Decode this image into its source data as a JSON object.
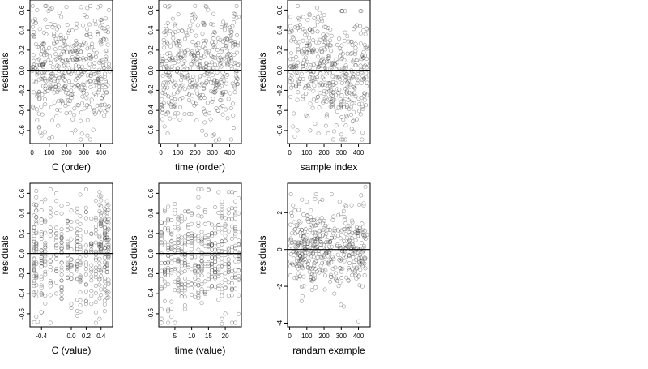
{
  "chart_data": [
    {
      "type": "scatter",
      "xlabel": "C (order)",
      "ylabel": "residuals",
      "xlim": [
        -12,
        468
      ],
      "ylim": [
        -0.73,
        0.7
      ],
      "xticks": [
        0,
        100,
        200,
        300,
        400
      ],
      "yticks": [
        -0.6,
        -0.4,
        -0.2,
        0.0,
        0.2,
        0.4,
        0.6
      ],
      "xtick_labels": [
        "0",
        "100",
        "200",
        "300",
        "400"
      ],
      "ytick_labels": [
        "-0.6",
        "-0.4",
        "-0.2",
        "0.0",
        "0.2",
        "0.4",
        "0.6"
      ],
      "reference_line_y": 0,
      "point_style": "open-circle",
      "point_color": "#444444",
      "n_points": 450,
      "generator": {
        "kind": "uniform",
        "ymin": -0.69,
        "ymax": 0.64,
        "seed": 11
      },
      "points": [
        [
          5,
          0.49
        ],
        [
          21,
          0.47
        ],
        [
          28,
          -0.39
        ],
        [
          48,
          -0.62
        ],
        [
          55,
          -0.65
        ],
        [
          60,
          -0.44
        ],
        [
          88,
          0.43
        ],
        [
          100,
          -0.68
        ],
        [
          120,
          0.43
        ],
        [
          142,
          -0.46
        ],
        [
          170,
          0.53
        ],
        [
          200,
          0.63
        ],
        [
          230,
          -0.63
        ],
        [
          252,
          -0.6
        ],
        [
          270,
          -0.35
        ],
        [
          305,
          0.55
        ],
        [
          318,
          0.53
        ],
        [
          322,
          -0.65
        ],
        [
          360,
          -0.41
        ],
        [
          398,
          0.5
        ],
        [
          405,
          -0.28
        ],
        [
          420,
          0.41
        ],
        [
          440,
          -0.37
        ],
        [
          447,
          0.6
        ]
      ]
    },
    {
      "type": "scatter",
      "xlabel": "time (order)",
      "ylabel": "residuals",
      "xlim": [
        -12,
        468
      ],
      "ylim": [
        -0.73,
        0.7
      ],
      "xticks": [
        0,
        100,
        200,
        300,
        400
      ],
      "yticks": [
        -0.6,
        -0.4,
        -0.2,
        0.0,
        0.2,
        0.4,
        0.6
      ],
      "xtick_labels": [
        "0",
        "100",
        "200",
        "300",
        "400"
      ],
      "ytick_labels": [
        "-0.6",
        "-0.4",
        "-0.2",
        "0.0",
        "0.2",
        "0.4",
        "0.6"
      ],
      "reference_line_y": 0,
      "point_style": "open-circle",
      "point_color": "#444444",
      "n_points": 450,
      "generator": {
        "kind": "uniform",
        "ymin": -0.69,
        "ymax": 0.64,
        "seed": 23
      },
      "points": [
        [
          22,
          -0.56
        ],
        [
          40,
          -0.63
        ],
        [
          60,
          -0.36
        ],
        [
          85,
          -0.43
        ],
        [
          100,
          -0.43
        ],
        [
          190,
          0.56
        ],
        [
          200,
          0.53
        ],
        [
          215,
          0.45
        ],
        [
          250,
          0.47
        ],
        [
          265,
          0.63
        ],
        [
          300,
          -0.65
        ],
        [
          310,
          -0.64
        ],
        [
          320,
          -0.7
        ],
        [
          345,
          0.3
        ],
        [
          360,
          -0.44
        ],
        [
          380,
          0.44
        ],
        [
          412,
          0.38
        ],
        [
          420,
          -0.45
        ],
        [
          440,
          0.52
        ],
        [
          452,
          0.53
        ]
      ]
    },
    {
      "type": "scatter",
      "xlabel": "sample index",
      "ylabel": "residuals",
      "xlim": [
        -12,
        468
      ],
      "ylim": [
        -0.73,
        0.7
      ],
      "xticks": [
        0,
        100,
        200,
        300,
        400
      ],
      "yticks": [
        -0.6,
        -0.4,
        -0.2,
        0.0,
        0.2,
        0.4,
        0.6
      ],
      "xtick_labels": [
        "0",
        "100",
        "200",
        "300",
        "400"
      ],
      "ytick_labels": [
        "-0.6",
        "-0.4",
        "-0.2",
        "0.0",
        "0.2",
        "0.4",
        "0.6"
      ],
      "reference_line_y": 0,
      "point_style": "open-circle",
      "point_color": "#444444",
      "n_points": 450,
      "generator": {
        "kind": "trend",
        "ymin": -0.69,
        "ymax": 0.64,
        "seed": 37
      },
      "points": [
        [
          20,
          -0.56
        ],
        [
          30,
          -0.66
        ],
        [
          45,
          -0.6
        ],
        [
          105,
          0.5
        ],
        [
          115,
          0.56
        ],
        [
          160,
          0.62
        ],
        [
          175,
          0.57
        ],
        [
          200,
          0.55
        ],
        [
          210,
          0.43
        ],
        [
          300,
          -0.64
        ],
        [
          310,
          -0.69
        ],
        [
          330,
          -0.45
        ],
        [
          370,
          -0.61
        ],
        [
          390,
          0.45
        ],
        [
          410,
          0.44
        ],
        [
          430,
          0.18
        ]
      ]
    },
    {
      "type": "scatter",
      "xlabel": "C (value)",
      "ylabel": "residuals",
      "xlim": [
        -0.555,
        0.555
      ],
      "ylim": [
        -0.73,
        0.7
      ],
      "xticks": [
        -0.4,
        0.0,
        0.2,
        0.4
      ],
      "yticks": [
        -0.6,
        -0.4,
        -0.2,
        0.0,
        0.2,
        0.4,
        0.6
      ],
      "xtick_labels": [
        "-0.4",
        "0.0",
        "0.2",
        "0.4"
      ],
      "ytick_labels": [
        "-0.6",
        "-0.4",
        "-0.2",
        "0.0",
        "0.2",
        "0.4",
        "0.6"
      ],
      "reference_line_y": 0,
      "point_style": "open-circle",
      "point_color": "#444444",
      "n_points": 450,
      "generator": {
        "kind": "discrete",
        "levels": [
          -0.5,
          -0.47,
          -0.4,
          -0.35,
          -0.28,
          -0.2,
          -0.13,
          -0.05,
          0.0,
          0.08,
          0.12,
          0.2,
          0.27,
          0.33,
          0.38,
          0.4,
          0.45,
          0.48,
          0.5
        ],
        "ymin": -0.69,
        "ymax": 0.64,
        "seed": 53
      },
      "points": [
        [
          -0.5,
          0.49
        ],
        [
          -0.47,
          -0.63
        ],
        [
          -0.45,
          -0.68
        ],
        [
          -0.4,
          0.51
        ],
        [
          -0.2,
          0.6
        ],
        [
          -0.35,
          -0.42
        ],
        [
          0.38,
          0.57
        ],
        [
          0.38,
          -0.65
        ],
        [
          0.08,
          -0.62
        ],
        [
          0.4,
          0.53
        ],
        [
          -0.13,
          -0.41
        ],
        [
          0.27,
          -0.42
        ]
      ]
    },
    {
      "type": "scatter",
      "xlabel": "time (value)",
      "ylabel": "residuals",
      "xlim": [
        0.2,
        24.8
      ],
      "ylim": [
        -0.73,
        0.7
      ],
      "xticks": [
        5,
        10,
        15,
        20
      ],
      "yticks": [
        -0.6,
        -0.4,
        -0.2,
        0.0,
        0.2,
        0.4,
        0.6
      ],
      "xtick_labels": [
        "5",
        "10",
        "15",
        "20"
      ],
      "ytick_labels": [
        "-0.6",
        "-0.4",
        "-0.2",
        "0.0",
        "0.2",
        "0.4",
        "0.6"
      ],
      "reference_line_y": 0,
      "point_style": "open-circle",
      "point_color": "#444444",
      "n_points": 450,
      "generator": {
        "kind": "discrete",
        "levels": [
          1,
          2,
          3,
          4,
          5,
          6,
          7,
          8,
          9,
          10,
          11,
          12,
          13,
          14,
          15,
          16,
          17,
          18,
          19,
          20,
          21,
          22,
          23,
          24
        ],
        "ymin": -0.69,
        "ymax": 0.64,
        "seed": 71
      },
      "points": [
        [
          3,
          -0.56
        ],
        [
          4,
          -0.63
        ],
        [
          6,
          -0.36
        ],
        [
          8,
          -0.43
        ],
        [
          12,
          0.56
        ],
        [
          12,
          0.46
        ],
        [
          15,
          0.63
        ],
        [
          14,
          0.43
        ],
        [
          19,
          -0.65
        ],
        [
          19,
          -0.7
        ],
        [
          20,
          -0.6
        ],
        [
          21,
          0.44
        ],
        [
          23,
          0.52
        ],
        [
          24,
          0.55
        ]
      ]
    },
    {
      "type": "scatter",
      "xlabel": "randam example",
      "ylabel": "residuals",
      "xlim": [
        -12,
        468
      ],
      "ylim": [
        -4.2,
        3.6
      ],
      "xticks": [
        0,
        100,
        200,
        300,
        400
      ],
      "yticks": [
        -4,
        -2,
        0,
        2
      ],
      "xtick_labels": [
        "0",
        "100",
        "200",
        "300",
        "400"
      ],
      "ytick_labels": [
        "-4",
        "-2",
        "0",
        "2"
      ],
      "reference_line_y": 0,
      "point_style": "open-circle",
      "point_color": "#444444",
      "n_points": 450,
      "generator": {
        "kind": "normal",
        "sd": 1,
        "seed": 97
      },
      "points": [
        [
          20,
          2.4
        ],
        [
          70,
          -2.8
        ],
        [
          100,
          2.6
        ],
        [
          130,
          -2.2
        ],
        [
          190,
          2.7
        ],
        [
          260,
          -2.4
        ],
        [
          290,
          2.6
        ],
        [
          315,
          -3.1
        ],
        [
          400,
          -3.9
        ],
        [
          440,
          3.4
        ],
        [
          430,
          2.5
        ],
        [
          360,
          2.4
        ]
      ]
    }
  ]
}
